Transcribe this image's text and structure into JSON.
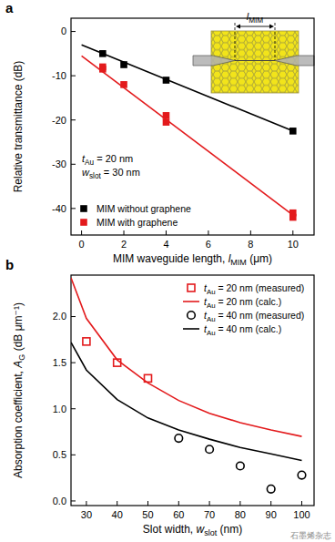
{
  "chart_data": [
    {
      "type": "scatter",
      "panel_label": "a",
      "x_label": {
        "pre": "MIM waveguide length, ",
        "var": "l",
        "sub": "MIM",
        "post": " (μm)"
      },
      "y_label": "Relative transmittance (dB)",
      "xlim": [
        -0.5,
        11
      ],
      "ylim": [
        -46,
        3
      ],
      "xticks": [
        0,
        2,
        4,
        6,
        8,
        10
      ],
      "yticks": [
        0,
        -10,
        -20,
        -30,
        -40
      ],
      "legend": "lower left",
      "annotations": [
        {
          "var": "t",
          "sub": "Au",
          "post": " = 20 nm"
        },
        {
          "var": "w",
          "sub": "slot",
          "post": " = 30 nm"
        }
      ],
      "inset_label": {
        "var": "l",
        "sub": "MIM"
      },
      "series": [
        {
          "name": "MIM without graphene",
          "type": "scatter",
          "marker": "square",
          "color": "#000000",
          "x": [
            1,
            2,
            4,
            10
          ],
          "values": [
            -5,
            -7.5,
            -11,
            -22.5
          ]
        },
        {
          "name": "MIM with graphene",
          "type": "scatter",
          "marker": "square",
          "color": "#e31a1c",
          "x": [
            1,
            1,
            2,
            4,
            4,
            10,
            10
          ],
          "values": [
            -8.5,
            -8,
            -12,
            -19,
            -20.5,
            -41,
            -42
          ]
        },
        {
          "type": "line",
          "color": "#000000",
          "line_style": "solid",
          "x": [
            0,
            10
          ],
          "values": [
            -3,
            -22.5
          ]
        },
        {
          "type": "line",
          "color": "#e31a1c",
          "line_style": "solid",
          "x": [
            0,
            10
          ],
          "values": [
            -5.5,
            -41.5
          ]
        }
      ]
    },
    {
      "type": "line",
      "panel_label": "b",
      "x_label": {
        "pre": "Slot width, ",
        "var": "w",
        "sub": "slot",
        "post": " (nm)"
      },
      "y_label": {
        "pre": "Absorption coefficient, ",
        "var": "A",
        "sub": "G",
        "post": " (dB μm⁻¹)"
      },
      "xlim": [
        25,
        104
      ],
      "ylim": [
        -0.05,
        2.45
      ],
      "xticks": [
        30,
        40,
        50,
        60,
        70,
        80,
        90,
        100
      ],
      "yticks": [
        {
          "value": 0,
          "label": "0.0"
        },
        0.5,
        {
          "value": 1,
          "label": "1.0"
        },
        1.5,
        {
          "value": 2,
          "label": "2.0"
        }
      ],
      "legend": "upper right",
      "watermark": "石墨烯杂志",
      "series": [
        {
          "name": {
            "var": "t",
            "sub": "Au",
            "post": " = 20 nm (measured)"
          },
          "type": "scatter",
          "marker": "open_square",
          "color": "#e31a1c",
          "x": [
            30,
            40,
            50
          ],
          "values": [
            1.73,
            1.5,
            1.33
          ]
        },
        {
          "name": {
            "var": "t",
            "sub": "Au",
            "post": " = 20 nm (calc.)"
          },
          "type": "line",
          "line_style": "solid",
          "color": "#e31a1c",
          "x": [
            25,
            30,
            40,
            50,
            60,
            70,
            80,
            90,
            100
          ],
          "values": [
            2.42,
            1.98,
            1.53,
            1.28,
            1.09,
            0.95,
            0.85,
            0.77,
            0.7
          ]
        },
        {
          "name": {
            "var": "t",
            "sub": "Au",
            "post": " = 40 nm (measured)"
          },
          "type": "scatter",
          "marker": "open_circle",
          "color": "#000000",
          "x": [
            60,
            70,
            80,
            90,
            100
          ],
          "values": [
            0.68,
            0.56,
            0.38,
            0.13,
            0.28
          ]
        },
        {
          "name": {
            "var": "t",
            "sub": "Au",
            "post": " = 40 nm (calc.)"
          },
          "type": "line",
          "line_style": "solid",
          "color": "#000000",
          "x": [
            25,
            30,
            40,
            50,
            60,
            70,
            80,
            90,
            100
          ],
          "values": [
            1.72,
            1.42,
            1.1,
            0.9,
            0.77,
            0.67,
            0.58,
            0.51,
            0.44
          ]
        }
      ]
    }
  ]
}
